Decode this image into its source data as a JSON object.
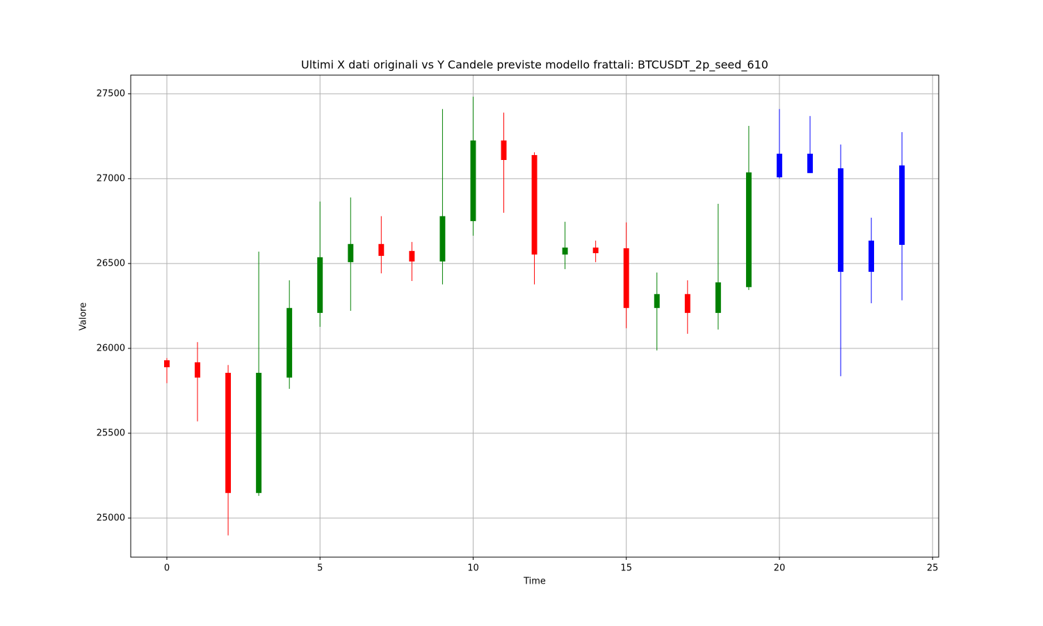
{
  "chart_data": {
    "type": "candlestick",
    "title": "Ultimi X dati originali vs Y Candele previste modello frattali: BTCUSDT_2p_seed_610",
    "x_label": "Time",
    "y_label": "Valore",
    "x": [
      0,
      1,
      2,
      3,
      4,
      5,
      6,
      7,
      8,
      9,
      10,
      11,
      12,
      13,
      14,
      15,
      16,
      17,
      18,
      19,
      20,
      21,
      22,
      23,
      24
    ],
    "open": [
      25930,
      25918,
      25856,
      25148,
      25828,
      26209,
      26508,
      26615,
      26574,
      26512,
      26750,
      27225,
      27139,
      26553,
      26594,
      26590,
      26238,
      26320,
      26209,
      26361,
      27008,
      27147,
      27061,
      26451,
      26610
    ],
    "high": [
      25943,
      26037,
      25902,
      26570,
      26401,
      26865,
      26889,
      26779,
      26627,
      27410,
      27483,
      27389,
      27155,
      26746,
      26635,
      26742,
      26447,
      26401,
      26852,
      27311,
      27410,
      27369,
      27201,
      26770,
      27274
    ],
    "low": [
      25795,
      25570,
      24898,
      25131,
      25762,
      26127,
      26221,
      26442,
      26397,
      26377,
      26664,
      26799,
      26377,
      26467,
      26508,
      26119,
      25988,
      26086,
      26111,
      26344,
      27000,
      27033,
      25836,
      26266,
      26283
    ],
    "close": [
      25889,
      25828,
      25148,
      25856,
      26238,
      26537,
      26615,
      26545,
      26512,
      26779,
      27225,
      27110,
      26553,
      26594,
      26561,
      26238,
      26320,
      26209,
      26389,
      27037,
      27147,
      27033,
      26451,
      26635,
      27078
    ],
    "colors": [
      "red",
      "red",
      "red",
      "green",
      "green",
      "green",
      "green",
      "red",
      "red",
      "green",
      "green",
      "red",
      "red",
      "green",
      "red",
      "red",
      "green",
      "red",
      "green",
      "green",
      "blue",
      "blue",
      "blue",
      "blue",
      "blue"
    ],
    "xlim": [
      -1.18,
      25.2
    ],
    "ylim": [
      24770,
      27610
    ],
    "xticks": [
      0,
      5,
      10,
      15,
      20,
      25
    ],
    "yticks": [
      25000,
      25500,
      26000,
      26500,
      27000,
      27500
    ],
    "grid": true
  }
}
